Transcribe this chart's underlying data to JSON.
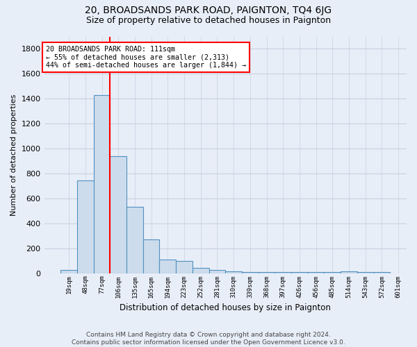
{
  "title": "20, BROADSANDS PARK ROAD, PAIGNTON, TQ4 6JG",
  "subtitle": "Size of property relative to detached houses in Paignton",
  "xlabel": "Distribution of detached houses by size in Paignton",
  "ylabel": "Number of detached properties",
  "bar_values": [
    25,
    745,
    1430,
    940,
    530,
    270,
    110,
    100,
    45,
    25,
    15,
    10,
    10,
    10,
    10,
    10,
    10,
    15,
    10,
    10
  ],
  "bin_labels": [
    "19sqm",
    "48sqm",
    "77sqm",
    "106sqm",
    "135sqm",
    "165sqm",
    "194sqm",
    "223sqm",
    "252sqm",
    "281sqm",
    "310sqm",
    "339sqm",
    "368sqm",
    "397sqm",
    "426sqm",
    "456sqm",
    "485sqm",
    "514sqm",
    "543sqm",
    "572sqm",
    "601sqm"
  ],
  "bar_color": "#ccdcec",
  "bar_edge_color": "#5090c0",
  "grid_color": "#c8d0e0",
  "background_color": "#e8eef8",
  "annotation_line1": "20 BROADSANDS PARK ROAD: 111sqm",
  "annotation_line2": "← 55% of detached houses are smaller (2,313)",
  "annotation_line3": "44% of semi-detached houses are larger (1,844) →",
  "annotation_box_color": "white",
  "annotation_box_edge_color": "red",
  "redline_bin": 3,
  "ylim": [
    0,
    1900
  ],
  "yticks": [
    0,
    200,
    400,
    600,
    800,
    1000,
    1200,
    1400,
    1600,
    1800
  ],
  "footer": "Contains HM Land Registry data © Crown copyright and database right 2024.\nContains public sector information licensed under the Open Government Licence v3.0."
}
